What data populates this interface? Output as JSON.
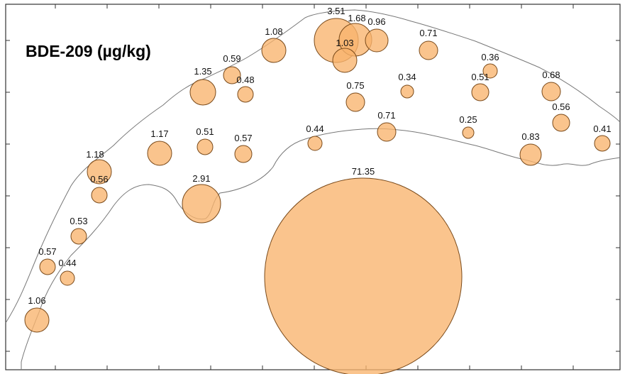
{
  "map": {
    "title": "BDE-209 (µg/kg)",
    "colors": {
      "bubble_fill": "#f9b36d",
      "bubble_stroke": "#7a4a1a",
      "coast": "#777777"
    },
    "stations": [
      {
        "id": "s01",
        "value": "3.51"
      },
      {
        "id": "s02",
        "value": "1.68"
      },
      {
        "id": "s03",
        "value": "1.03"
      },
      {
        "id": "s04",
        "value": "0.96"
      },
      {
        "id": "s05",
        "value": "1.08"
      },
      {
        "id": "s06",
        "value": "0.71"
      },
      {
        "id": "s07",
        "value": "0.59"
      },
      {
        "id": "s08",
        "value": "0.36"
      },
      {
        "id": "s09",
        "value": "0.48"
      },
      {
        "id": "s10",
        "value": "1.35"
      },
      {
        "id": "s11",
        "value": "0.75"
      },
      {
        "id": "s12",
        "value": "0.34"
      },
      {
        "id": "s13",
        "value": "0.51"
      },
      {
        "id": "s14",
        "value": "0.68"
      },
      {
        "id": "s15",
        "value": "0.56"
      },
      {
        "id": "s16",
        "value": "1.17"
      },
      {
        "id": "s17",
        "value": "0.51"
      },
      {
        "id": "s18",
        "value": "0.57"
      },
      {
        "id": "s19",
        "value": "0.44"
      },
      {
        "id": "s20",
        "value": "0.71"
      },
      {
        "id": "s21",
        "value": "0.25"
      },
      {
        "id": "s22",
        "value": "0.83"
      },
      {
        "id": "s23",
        "value": "0.41"
      },
      {
        "id": "s24",
        "value": "1.18"
      },
      {
        "id": "s25",
        "value": "0.56"
      },
      {
        "id": "s26",
        "value": "2.91"
      },
      {
        "id": "s27",
        "value": "71.35"
      },
      {
        "id": "s28",
        "value": "0.53"
      },
      {
        "id": "s29",
        "value": "0.57"
      },
      {
        "id": "s30",
        "value": "0.44"
      },
      {
        "id": "s31",
        "value": "1.06"
      }
    ]
  }
}
